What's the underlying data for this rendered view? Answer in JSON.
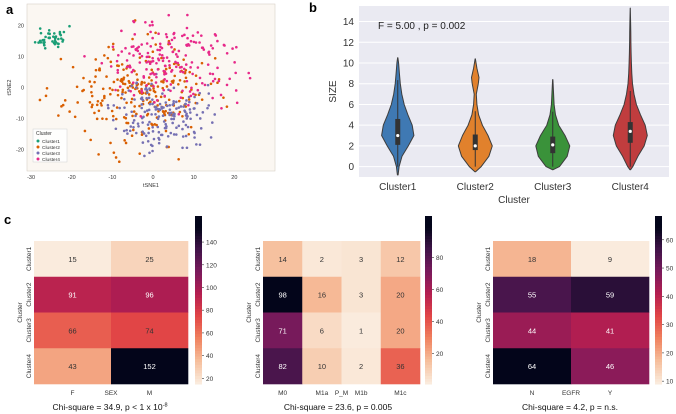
{
  "panels": {
    "a": {
      "label": "a"
    },
    "b": {
      "label": "b"
    },
    "c": {
      "label": "c"
    }
  },
  "colors": {
    "cluster1": "#1a9e76",
    "cluster2": "#d95f02",
    "cluster3": "#7570b3",
    "cluster4": "#e7298a",
    "violin1": "#3f79b3",
    "violin2": "#e1812c",
    "violin3": "#3a923a",
    "violin4": "#c03d3e",
    "plot_bg": "#eaeaf2"
  },
  "chart_data": [
    {
      "id": "tsne",
      "type": "scatter",
      "title": "",
      "xlabel": "tSNE1",
      "ylabel": "tSNE2",
      "xlim": [
        -31,
        30
      ],
      "ylim": [
        -27,
        27
      ],
      "xticks": [
        -30,
        -20,
        -10,
        0,
        10,
        20
      ],
      "yticks": [
        -20,
        -10,
        0,
        10,
        20
      ],
      "legend": {
        "title": "Cluster",
        "position": "bottom-left",
        "entries": [
          "Cluster1",
          "Cluster2",
          "Cluster3",
          "Cluster4"
        ]
      },
      "series": [
        {
          "name": "Cluster1",
          "n": 43,
          "center": [
            -25,
            16
          ],
          "spread": [
            3.5,
            3.5
          ],
          "seed": 11
        },
        {
          "name": "Cluster2",
          "n": 248,
          "center": [
            -4,
            -2
          ],
          "spread": [
            16,
            14
          ],
          "seed": 23
        },
        {
          "name": "Cluster3",
          "n": 170,
          "center": [
            2,
            -9
          ],
          "spread": [
            10,
            10
          ],
          "seed": 37
        },
        {
          "name": "Cluster4",
          "n": 195,
          "center": [
            4,
            8
          ],
          "spread": [
            15,
            13
          ],
          "seed": 51
        }
      ]
    },
    {
      "id": "violin",
      "type": "violin",
      "xlabel": "Cluster",
      "ylabel": "SIZE",
      "ylim": [
        -1,
        15.5
      ],
      "yticks": [
        0,
        2,
        4,
        6,
        8,
        10,
        12,
        14
      ],
      "annotation": "F = 5.00 , p = 0.002",
      "categories": [
        "Cluster1",
        "Cluster2",
        "Cluster3",
        "Cluster4"
      ],
      "series": [
        {
          "name": "Cluster1",
          "min": -0.8,
          "max": 10.5,
          "q1": 2.1,
          "median": 3.0,
          "q3": 4.6,
          "density": [
            [
              -0.8,
              0.02
            ],
            [
              0,
              0.08
            ],
            [
              1,
              0.25
            ],
            [
              2,
              0.62
            ],
            [
              3,
              0.95
            ],
            [
              4,
              0.85
            ],
            [
              5,
              0.6
            ],
            [
              6,
              0.38
            ],
            [
              7,
              0.24
            ],
            [
              8,
              0.15
            ],
            [
              9,
              0.1
            ],
            [
              10,
              0.05
            ],
            [
              10.5,
              0.01
            ]
          ]
        },
        {
          "name": "Cluster2",
          "min": -0.5,
          "max": 10.4,
          "q1": 1.6,
          "median": 2.0,
          "q3": 3.1,
          "density": [
            [
              -0.5,
              0.02
            ],
            [
              0,
              0.35
            ],
            [
              1,
              0.8
            ],
            [
              2,
              1.0
            ],
            [
              3,
              0.75
            ],
            [
              4,
              0.42
            ],
            [
              5,
              0.2
            ],
            [
              6,
              0.1
            ],
            [
              7,
              0.06
            ],
            [
              8,
              0.18
            ],
            [
              8.6,
              0.22
            ],
            [
              9.5,
              0.1
            ],
            [
              10.4,
              0.01
            ]
          ]
        },
        {
          "name": "Cluster3",
          "min": -0.3,
          "max": 8.4,
          "q1": 1.3,
          "median": 2.1,
          "q3": 2.9,
          "density": [
            [
              -0.3,
              0.02
            ],
            [
              0,
              0.4
            ],
            [
              1,
              0.85
            ],
            [
              2,
              1.0
            ],
            [
              3,
              0.72
            ],
            [
              4,
              0.35
            ],
            [
              5,
              0.16
            ],
            [
              6,
              0.08
            ],
            [
              7,
              0.05
            ],
            [
              8,
              0.02
            ],
            [
              8.4,
              0.01
            ]
          ]
        },
        {
          "name": "Cluster4",
          "min": -0.3,
          "max": 15.3,
          "q1": 2.3,
          "median": 3.4,
          "q3": 4.3,
          "density": [
            [
              -0.3,
              0.02
            ],
            [
              0,
              0.15
            ],
            [
              1,
              0.45
            ],
            [
              2,
              0.82
            ],
            [
              3,
              1.0
            ],
            [
              4,
              0.88
            ],
            [
              5,
              0.6
            ],
            [
              6,
              0.36
            ],
            [
              7,
              0.22
            ],
            [
              8,
              0.13
            ],
            [
              9,
              0.09
            ],
            [
              10,
              0.07
            ],
            [
              11,
              0.05
            ],
            [
              12,
              0.04
            ],
            [
              13,
              0.03
            ],
            [
              14,
              0.02
            ],
            [
              15.3,
              0.005
            ]
          ]
        }
      ]
    },
    {
      "id": "heatmap-sex",
      "type": "heatmap",
      "xlabel": "SEX",
      "ylabel": "Cluster",
      "columns": [
        "F",
        "M"
      ],
      "rows": [
        "Cluster1",
        "Cluster2",
        "Cluster3",
        "Cluster4"
      ],
      "values": [
        [
          15,
          25
        ],
        [
          91,
          96
        ],
        [
          66,
          74
        ],
        [
          43,
          152
        ]
      ],
      "vmin": 15,
      "vmax": 152,
      "colorbar_ticks": [
        20,
        40,
        60,
        80,
        100,
        120,
        140
      ],
      "caption_parts": [
        "Chi-square = 34.9, p < 1 x 10",
        "-8"
      ]
    },
    {
      "id": "heatmap-pm",
      "type": "heatmap",
      "xlabel": "P_M",
      "ylabel": "Cluster",
      "columns": [
        "M0",
        "M1a",
        "M1b",
        "M1c"
      ],
      "rows": [
        "Cluster1",
        "Cluster2",
        "Cluster3",
        "Cluster4"
      ],
      "values": [
        [
          14,
          2,
          3,
          12
        ],
        [
          98,
          16,
          3,
          20
        ],
        [
          71,
          6,
          1,
          20
        ],
        [
          82,
          10,
          2,
          36
        ]
      ],
      "vmin": 1,
      "vmax": 98,
      "colorbar_ticks": [
        20,
        40,
        60,
        80
      ],
      "caption_parts": [
        "Chi-square = 23.6, p = 0.005"
      ]
    },
    {
      "id": "heatmap-egfr",
      "type": "heatmap",
      "xlabel": "EGFR",
      "ylabel": "Cluster",
      "columns": [
        "N",
        "Y"
      ],
      "rows": [
        "Cluster1",
        "Cluster2",
        "Cluster3",
        "Cluster4"
      ],
      "values": [
        [
          18,
          9
        ],
        [
          55,
          59
        ],
        [
          44,
          41
        ],
        [
          64,
          46
        ]
      ],
      "vmin": 9,
      "vmax": 64,
      "colorbar_ticks": [
        10,
        20,
        30,
        40,
        50,
        60
      ],
      "caption_parts": [
        "Chi-square = 4.2, p = n.s."
      ]
    }
  ]
}
